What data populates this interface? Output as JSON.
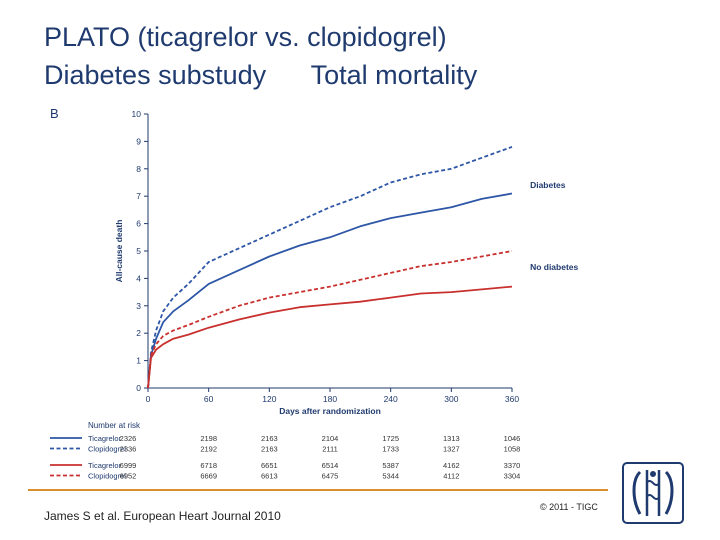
{
  "slide": {
    "title_line1": "PLATO (ticagrelor vs. clopidogrel)",
    "title_line2": "Diabetes substudy      Total mortality",
    "citation": "James S et al. European Heart Journal 2010",
    "copyright": "© 2011 - TIGC",
    "accent_color": "#1f3a6e",
    "rule_color": "#d98f2b"
  },
  "chart_data": {
    "type": "line",
    "panel_label": "B",
    "ylabel": "All-cause death",
    "xlabel": "Days after randomization",
    "xlim": [
      0,
      360
    ],
    "ylim": [
      0,
      10
    ],
    "xticks": [
      0,
      60,
      120,
      180,
      240,
      300,
      360
    ],
    "yticks": [
      0,
      1,
      2,
      3,
      4,
      5,
      6,
      7,
      8,
      9,
      10
    ],
    "annotations": [
      {
        "text": "Diabetes",
        "x": 366,
        "y": 7.3
      },
      {
        "text": "No diabetes",
        "x": 366,
        "y": 4.3
      }
    ],
    "series": [
      {
        "name": "Ticagrelor",
        "group": "Diabetes",
        "color": "#2d56a6",
        "dash": false,
        "x": [
          0,
          3,
          8,
          15,
          25,
          40,
          60,
          90,
          120,
          150,
          180,
          210,
          240,
          270,
          300,
          330,
          360
        ],
        "y": [
          0,
          1.2,
          1.8,
          2.4,
          2.8,
          3.2,
          3.8,
          4.3,
          4.8,
          5.2,
          5.5,
          5.9,
          6.2,
          6.4,
          6.6,
          6.9,
          7.1
        ]
      },
      {
        "name": "Clopidogrel",
        "group": "Diabetes",
        "color": "#2d56a6",
        "dash": true,
        "x": [
          0,
          3,
          8,
          15,
          25,
          40,
          60,
          90,
          120,
          150,
          180,
          210,
          240,
          270,
          300,
          330,
          360
        ],
        "y": [
          0,
          1.3,
          2.1,
          2.8,
          3.3,
          3.8,
          4.6,
          5.1,
          5.6,
          6.1,
          6.6,
          7.0,
          7.5,
          7.8,
          8.0,
          8.4,
          8.8
        ]
      },
      {
        "name": "Ticagrelor",
        "group": "No diabetes",
        "color": "#c8302e",
        "dash": false,
        "x": [
          0,
          3,
          8,
          15,
          25,
          40,
          60,
          90,
          120,
          150,
          180,
          210,
          240,
          270,
          300,
          330,
          360
        ],
        "y": [
          0,
          1.1,
          1.4,
          1.6,
          1.8,
          1.95,
          2.2,
          2.5,
          2.75,
          2.95,
          3.05,
          3.15,
          3.3,
          3.45,
          3.5,
          3.6,
          3.7
        ]
      },
      {
        "name": "Clopidogrel",
        "group": "No diabetes",
        "color": "#c8302e",
        "dash": true,
        "x": [
          0,
          3,
          8,
          15,
          25,
          40,
          60,
          90,
          120,
          150,
          180,
          210,
          240,
          270,
          300,
          330,
          360
        ],
        "y": [
          0,
          1.2,
          1.6,
          1.9,
          2.1,
          2.3,
          2.6,
          3.0,
          3.3,
          3.5,
          3.7,
          3.95,
          4.2,
          4.45,
          4.6,
          4.8,
          5.0
        ]
      }
    ],
    "number_at_risk": {
      "title": "Number at risk",
      "rows": [
        {
          "label": "Ticagrelor",
          "color": "#2d56a6",
          "dash": false,
          "values": [
            "2326",
            "2198",
            "2163",
            "2104",
            "1725",
            "1313",
            "1046"
          ]
        },
        {
          "label": "Clopidogrel",
          "color": "#2d56a6",
          "dash": true,
          "values": [
            "2336",
            "2192",
            "2163",
            "2111",
            "1733",
            "1327",
            "1058"
          ]
        },
        {
          "label": "Ticagrelor",
          "color": "#c8302e",
          "dash": false,
          "values": [
            "6999",
            "6718",
            "6651",
            "6514",
            "5387",
            "4162",
            "3370"
          ]
        },
        {
          "label": "Clopidogrel",
          "color": "#c8302e",
          "dash": true,
          "values": [
            "6952",
            "6669",
            "6613",
            "6475",
            "5344",
            "4112",
            "3304"
          ]
        }
      ]
    }
  }
}
